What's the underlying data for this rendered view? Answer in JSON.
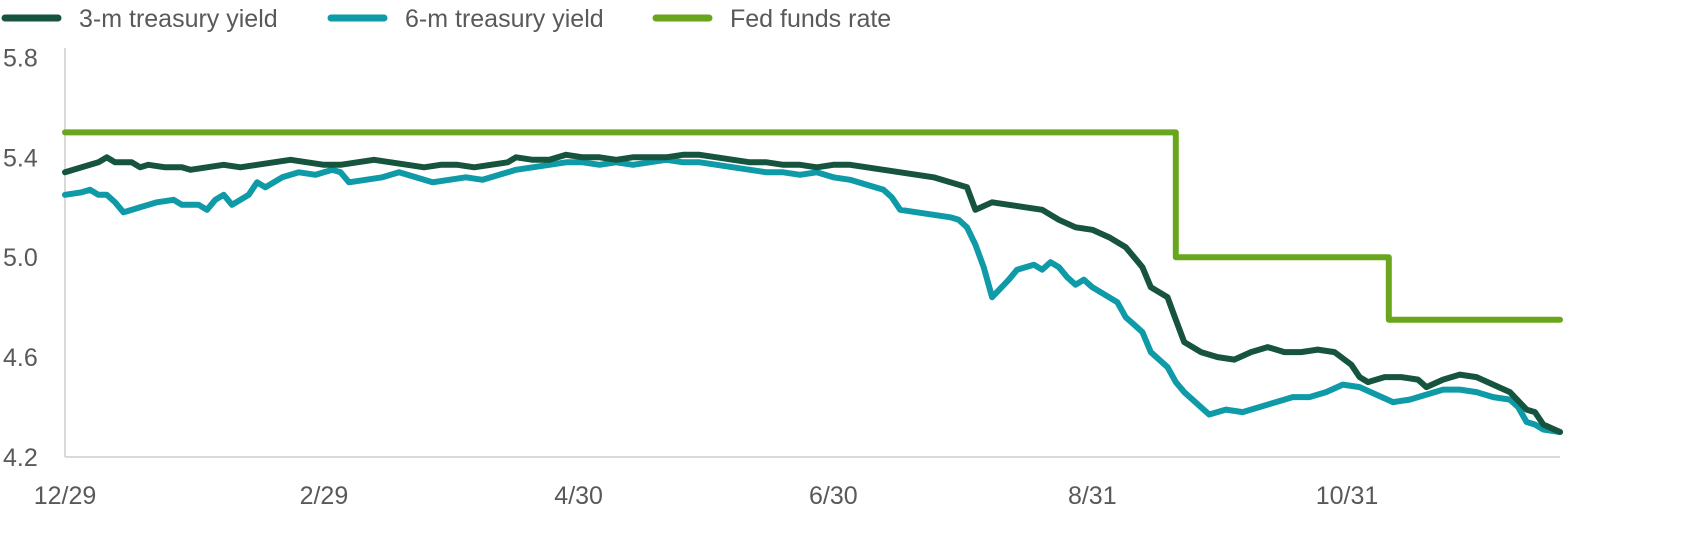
{
  "chart_data": {
    "type": "line",
    "title": "",
    "xlabel": "",
    "ylabel": "",
    "ylim": [
      4.2,
      6.0
    ],
    "yticks": [
      "4.2",
      "4.6",
      "5.0",
      "5.4",
      "5.8"
    ],
    "xticks": [
      {
        "label": "12/29",
        "day": 0
      },
      {
        "label": "2/29",
        "day": 62
      },
      {
        "label": "4/30",
        "day": 123
      },
      {
        "label": "6/30",
        "day": 184
      },
      {
        "label": "8/31",
        "day": 246
      },
      {
        "label": "10/31",
        "day": 307
      }
    ],
    "xrange": [
      0,
      358
    ],
    "grid": false,
    "legend": "top-left",
    "series": [
      {
        "name": "3-m treasury yield",
        "color": "#16543d",
        "points": [
          [
            0,
            5.34
          ],
          [
            4,
            5.36
          ],
          [
            8,
            5.38
          ],
          [
            10,
            5.4
          ],
          [
            12,
            5.38
          ],
          [
            16,
            5.38
          ],
          [
            18,
            5.36
          ],
          [
            20,
            5.37
          ],
          [
            24,
            5.36
          ],
          [
            28,
            5.36
          ],
          [
            30,
            5.35
          ],
          [
            34,
            5.36
          ],
          [
            38,
            5.37
          ],
          [
            42,
            5.36
          ],
          [
            46,
            5.37
          ],
          [
            50,
            5.38
          ],
          [
            54,
            5.39
          ],
          [
            58,
            5.38
          ],
          [
            62,
            5.37
          ],
          [
            66,
            5.37
          ],
          [
            70,
            5.38
          ],
          [
            74,
            5.39
          ],
          [
            78,
            5.38
          ],
          [
            82,
            5.37
          ],
          [
            86,
            5.36
          ],
          [
            90,
            5.37
          ],
          [
            94,
            5.37
          ],
          [
            98,
            5.36
          ],
          [
            102,
            5.37
          ],
          [
            106,
            5.38
          ],
          [
            108,
            5.4
          ],
          [
            112,
            5.39
          ],
          [
            116,
            5.39
          ],
          [
            120,
            5.41
          ],
          [
            124,
            5.4
          ],
          [
            128,
            5.4
          ],
          [
            132,
            5.39
          ],
          [
            136,
            5.4
          ],
          [
            140,
            5.4
          ],
          [
            144,
            5.4
          ],
          [
            148,
            5.41
          ],
          [
            152,
            5.41
          ],
          [
            156,
            5.4
          ],
          [
            160,
            5.39
          ],
          [
            164,
            5.38
          ],
          [
            168,
            5.38
          ],
          [
            172,
            5.37
          ],
          [
            176,
            5.37
          ],
          [
            180,
            5.36
          ],
          [
            184,
            5.37
          ],
          [
            188,
            5.37
          ],
          [
            192,
            5.36
          ],
          [
            196,
            5.35
          ],
          [
            200,
            5.34
          ],
          [
            204,
            5.33
          ],
          [
            208,
            5.32
          ],
          [
            212,
            5.3
          ],
          [
            214,
            5.29
          ],
          [
            216,
            5.28
          ],
          [
            218,
            5.19
          ],
          [
            222,
            5.22
          ],
          [
            226,
            5.21
          ],
          [
            230,
            5.2
          ],
          [
            234,
            5.19
          ],
          [
            238,
            5.15
          ],
          [
            242,
            5.12
          ],
          [
            246,
            5.11
          ],
          [
            250,
            5.08
          ],
          [
            254,
            5.04
          ],
          [
            256,
            5.0
          ],
          [
            258,
            4.96
          ],
          [
            260,
            4.88
          ],
          [
            264,
            4.84
          ],
          [
            266,
            4.75
          ],
          [
            268,
            4.66
          ],
          [
            272,
            4.62
          ],
          [
            276,
            4.6
          ],
          [
            280,
            4.59
          ],
          [
            284,
            4.62
          ],
          [
            288,
            4.64
          ],
          [
            292,
            4.62
          ],
          [
            296,
            4.62
          ],
          [
            300,
            4.63
          ],
          [
            304,
            4.62
          ],
          [
            308,
            4.57
          ],
          [
            310,
            4.52
          ],
          [
            312,
            4.5
          ],
          [
            316,
            4.52
          ],
          [
            320,
            4.52
          ],
          [
            324,
            4.51
          ],
          [
            326,
            4.48
          ],
          [
            330,
            4.51
          ],
          [
            334,
            4.53
          ],
          [
            338,
            4.52
          ],
          [
            342,
            4.49
          ],
          [
            346,
            4.46
          ],
          [
            350,
            4.39
          ],
          [
            352,
            4.38
          ],
          [
            354,
            4.33
          ],
          [
            358,
            4.3
          ]
        ]
      },
      {
        "name": "6-m treasury yield",
        "color": "#0e9aa7",
        "points": [
          [
            0,
            5.25
          ],
          [
            4,
            5.26
          ],
          [
            6,
            5.27
          ],
          [
            8,
            5.25
          ],
          [
            10,
            5.25
          ],
          [
            12,
            5.22
          ],
          [
            14,
            5.18
          ],
          [
            18,
            5.2
          ],
          [
            22,
            5.22
          ],
          [
            26,
            5.23
          ],
          [
            28,
            5.21
          ],
          [
            32,
            5.21
          ],
          [
            34,
            5.19
          ],
          [
            36,
            5.23
          ],
          [
            38,
            5.25
          ],
          [
            40,
            5.21
          ],
          [
            44,
            5.25
          ],
          [
            46,
            5.3
          ],
          [
            48,
            5.28
          ],
          [
            52,
            5.32
          ],
          [
            56,
            5.34
          ],
          [
            60,
            5.33
          ],
          [
            64,
            5.35
          ],
          [
            66,
            5.34
          ],
          [
            68,
            5.3
          ],
          [
            72,
            5.31
          ],
          [
            76,
            5.32
          ],
          [
            80,
            5.34
          ],
          [
            84,
            5.32
          ],
          [
            88,
            5.3
          ],
          [
            92,
            5.31
          ],
          [
            96,
            5.32
          ],
          [
            100,
            5.31
          ],
          [
            104,
            5.33
          ],
          [
            108,
            5.35
          ],
          [
            112,
            5.36
          ],
          [
            116,
            5.37
          ],
          [
            120,
            5.38
          ],
          [
            124,
            5.38
          ],
          [
            128,
            5.37
          ],
          [
            132,
            5.38
          ],
          [
            136,
            5.37
          ],
          [
            140,
            5.38
          ],
          [
            144,
            5.39
          ],
          [
            148,
            5.38
          ],
          [
            152,
            5.38
          ],
          [
            156,
            5.37
          ],
          [
            160,
            5.36
          ],
          [
            164,
            5.35
          ],
          [
            168,
            5.34
          ],
          [
            172,
            5.34
          ],
          [
            176,
            5.33
          ],
          [
            180,
            5.34
          ],
          [
            184,
            5.32
          ],
          [
            188,
            5.31
          ],
          [
            192,
            5.29
          ],
          [
            196,
            5.27
          ],
          [
            198,
            5.24
          ],
          [
            200,
            5.19
          ],
          [
            204,
            5.18
          ],
          [
            208,
            5.17
          ],
          [
            212,
            5.16
          ],
          [
            214,
            5.15
          ],
          [
            216,
            5.12
          ],
          [
            218,
            5.05
          ],
          [
            220,
            4.96
          ],
          [
            222,
            4.84
          ],
          [
            226,
            4.91
          ],
          [
            228,
            4.95
          ],
          [
            232,
            4.97
          ],
          [
            234,
            4.95
          ],
          [
            236,
            4.98
          ],
          [
            238,
            4.96
          ],
          [
            240,
            4.92
          ],
          [
            242,
            4.89
          ],
          [
            244,
            4.91
          ],
          [
            246,
            4.88
          ],
          [
            248,
            4.86
          ],
          [
            252,
            4.82
          ],
          [
            254,
            4.76
          ],
          [
            256,
            4.73
          ],
          [
            258,
            4.7
          ],
          [
            260,
            4.62
          ],
          [
            264,
            4.56
          ],
          [
            266,
            4.5
          ],
          [
            268,
            4.46
          ],
          [
            272,
            4.4
          ],
          [
            274,
            4.37
          ],
          [
            278,
            4.39
          ],
          [
            282,
            4.38
          ],
          [
            286,
            4.4
          ],
          [
            290,
            4.42
          ],
          [
            294,
            4.44
          ],
          [
            298,
            4.44
          ],
          [
            302,
            4.46
          ],
          [
            306,
            4.49
          ],
          [
            310,
            4.48
          ],
          [
            314,
            4.45
          ],
          [
            318,
            4.42
          ],
          [
            322,
            4.43
          ],
          [
            326,
            4.45
          ],
          [
            330,
            4.47
          ],
          [
            334,
            4.47
          ],
          [
            338,
            4.46
          ],
          [
            342,
            4.44
          ],
          [
            346,
            4.43
          ],
          [
            348,
            4.4
          ],
          [
            350,
            4.34
          ],
          [
            352,
            4.33
          ],
          [
            354,
            4.31
          ],
          [
            358,
            4.3
          ]
        ]
      },
      {
        "name": "Fed funds rate",
        "color": "#6aa61d",
        "points": [
          [
            0,
            5.5
          ],
          [
            266,
            5.5
          ],
          [
            266,
            5.0
          ],
          [
            317,
            5.0
          ],
          [
            317,
            4.75
          ],
          [
            358,
            4.75
          ]
        ]
      }
    ]
  }
}
